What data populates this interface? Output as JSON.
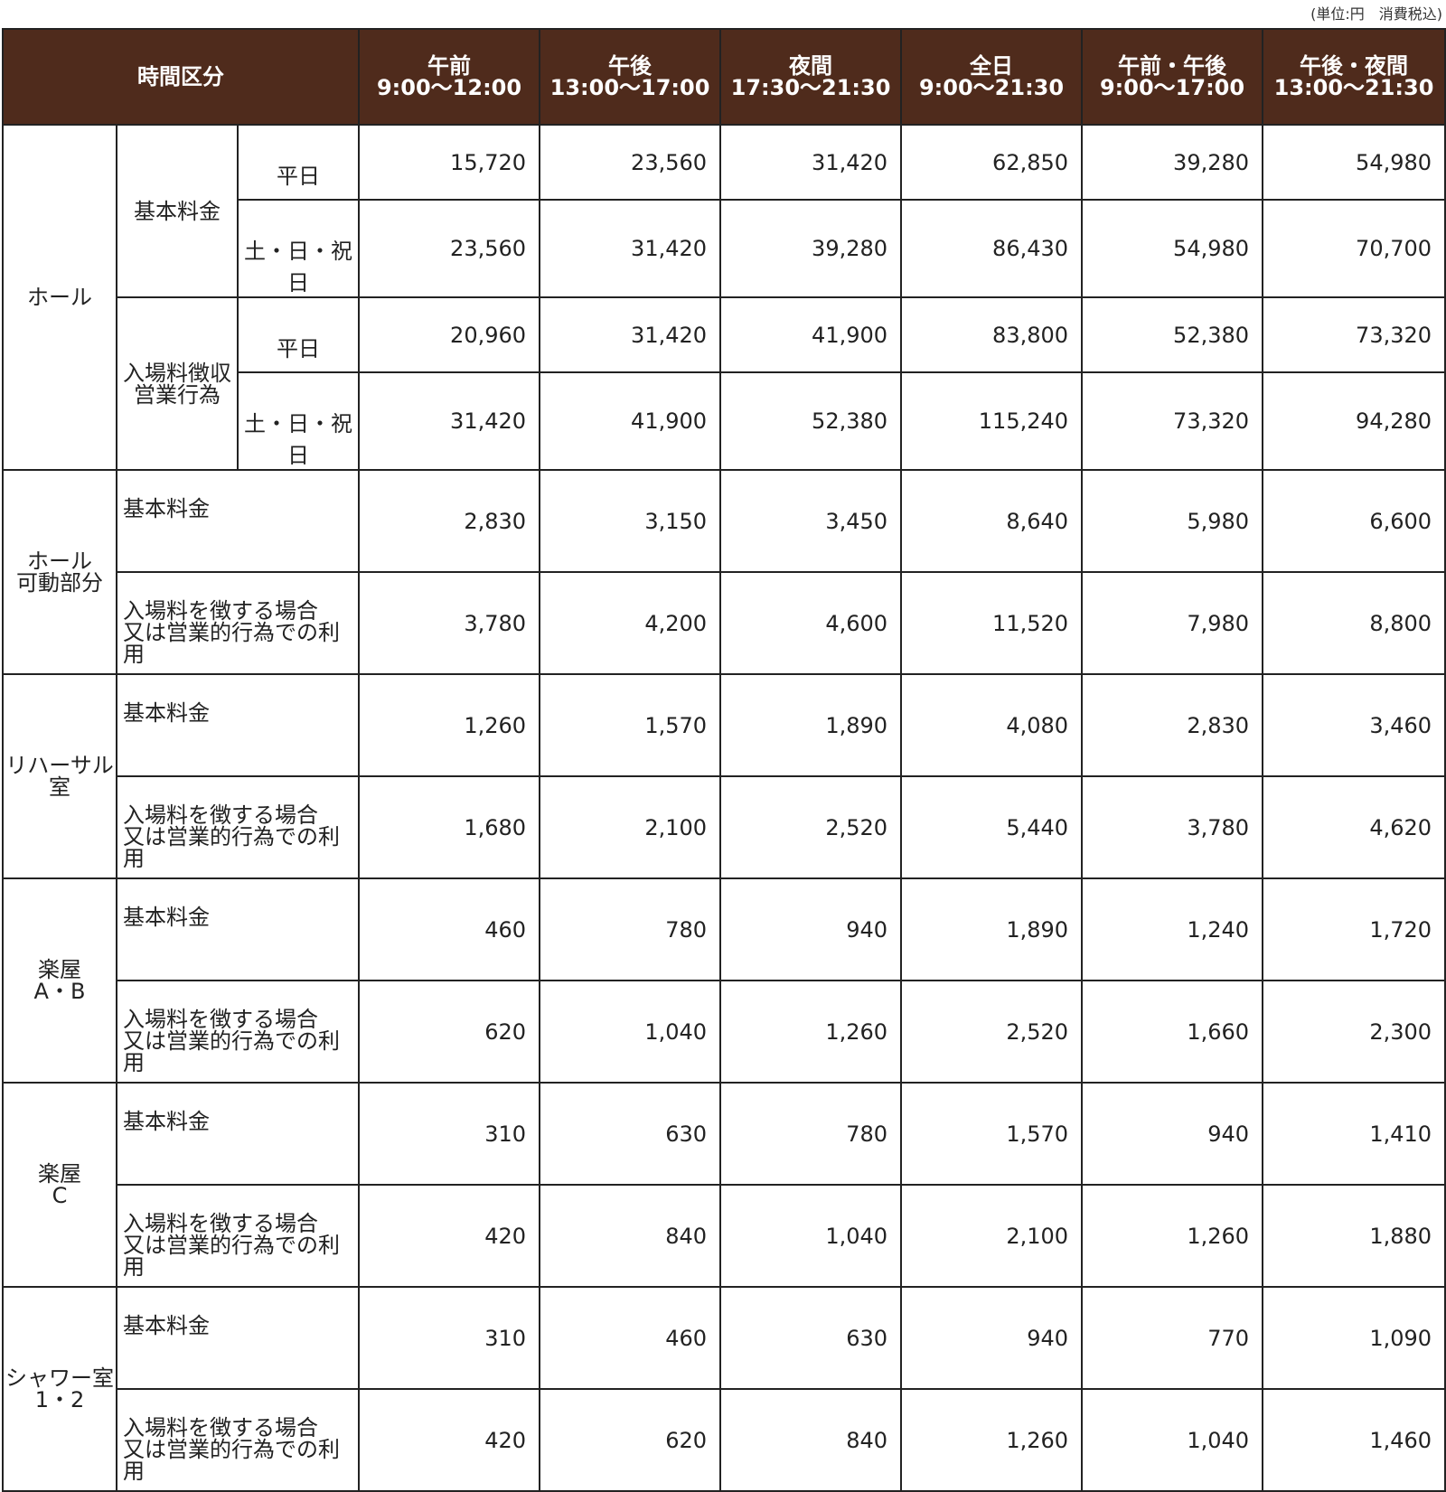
{
  "unit_note": "(単位:円　消費税込)",
  "header": {
    "category_label": "時間区分",
    "columns": [
      {
        "name": "午前",
        "time": "9:00〜12:00"
      },
      {
        "name": "午後",
        "time": "13:00〜17:00"
      },
      {
        "name": "夜間",
        "time": "17:30〜21:30"
      },
      {
        "name": "全日",
        "time": "9:00〜21:30"
      },
      {
        "name": "午前・午後",
        "time": "9:00〜17:00"
      },
      {
        "name": "午後・夜間",
        "time": "13:00〜21:30"
      }
    ]
  },
  "hall": {
    "label": "ホール",
    "groups": [
      {
        "label": [
          "基本料金"
        ],
        "rows": [
          {
            "day": "平日",
            "values": [
              "15,720",
              "23,560",
              "31,420",
              "62,850",
              "39,280",
              "54,980"
            ]
          },
          {
            "day": "土・日・祝日",
            "values": [
              "23,560",
              "31,420",
              "39,280",
              "86,430",
              "54,980",
              "70,700"
            ]
          }
        ]
      },
      {
        "label": [
          "入場料徴収",
          "営業行為"
        ],
        "rows": [
          {
            "day": "平日",
            "values": [
              "20,960",
              "31,420",
              "41,900",
              "83,800",
              "52,380",
              "73,320"
            ]
          },
          {
            "day": "土・日・祝日",
            "values": [
              "31,420",
              "41,900",
              "52,380",
              "115,240",
              "73,320",
              "94,280"
            ]
          }
        ]
      }
    ]
  },
  "facilities": [
    {
      "label": [
        "ホール",
        "可動部分"
      ],
      "rows": [
        {
          "label": [
            "基本料金"
          ],
          "values": [
            "2,830",
            "3,150",
            "3,450",
            "8,640",
            "5,980",
            "6,600"
          ]
        },
        {
          "label": [
            "入場料を徴する場合",
            "又は営業的行為での利用"
          ],
          "values": [
            "3,780",
            "4,200",
            "4,600",
            "11,520",
            "7,980",
            "8,800"
          ]
        }
      ]
    },
    {
      "label": [
        "リハーサル",
        "室"
      ],
      "rows": [
        {
          "label": [
            "基本料金"
          ],
          "values": [
            "1,260",
            "1,570",
            "1,890",
            "4,080",
            "2,830",
            "3,460"
          ]
        },
        {
          "label": [
            "入場料を徴する場合",
            "又は営業的行為での利用"
          ],
          "values": [
            "1,680",
            "2,100",
            "2,520",
            "5,440",
            "3,780",
            "4,620"
          ]
        }
      ]
    },
    {
      "label": [
        "楽屋",
        "A・B"
      ],
      "rows": [
        {
          "label": [
            "基本料金"
          ],
          "values": [
            "460",
            "780",
            "940",
            "1,890",
            "1,240",
            "1,720"
          ]
        },
        {
          "label": [
            "入場料を徴する場合",
            "又は営業的行為での利用"
          ],
          "values": [
            "620",
            "1,040",
            "1,260",
            "2,520",
            "1,660",
            "2,300"
          ]
        }
      ]
    },
    {
      "label": [
        "楽屋",
        "C"
      ],
      "rows": [
        {
          "label": [
            "基本料金"
          ],
          "values": [
            "310",
            "630",
            "780",
            "1,570",
            "940",
            "1,410"
          ]
        },
        {
          "label": [
            "入場料を徴する場合",
            "又は営業的行為での利用"
          ],
          "values": [
            "420",
            "840",
            "1,040",
            "2,100",
            "1,260",
            "1,880"
          ]
        }
      ]
    },
    {
      "label": [
        "シャワー室",
        "1・2"
      ],
      "rows": [
        {
          "label": [
            "基本料金"
          ],
          "values": [
            "310",
            "460",
            "630",
            "940",
            "770",
            "1,090"
          ]
        },
        {
          "label": [
            "入場料を徴する場合",
            "又は営業的行為での利用"
          ],
          "values": [
            "420",
            "620",
            "840",
            "1,260",
            "1,040",
            "1,460"
          ]
        }
      ]
    }
  ]
}
